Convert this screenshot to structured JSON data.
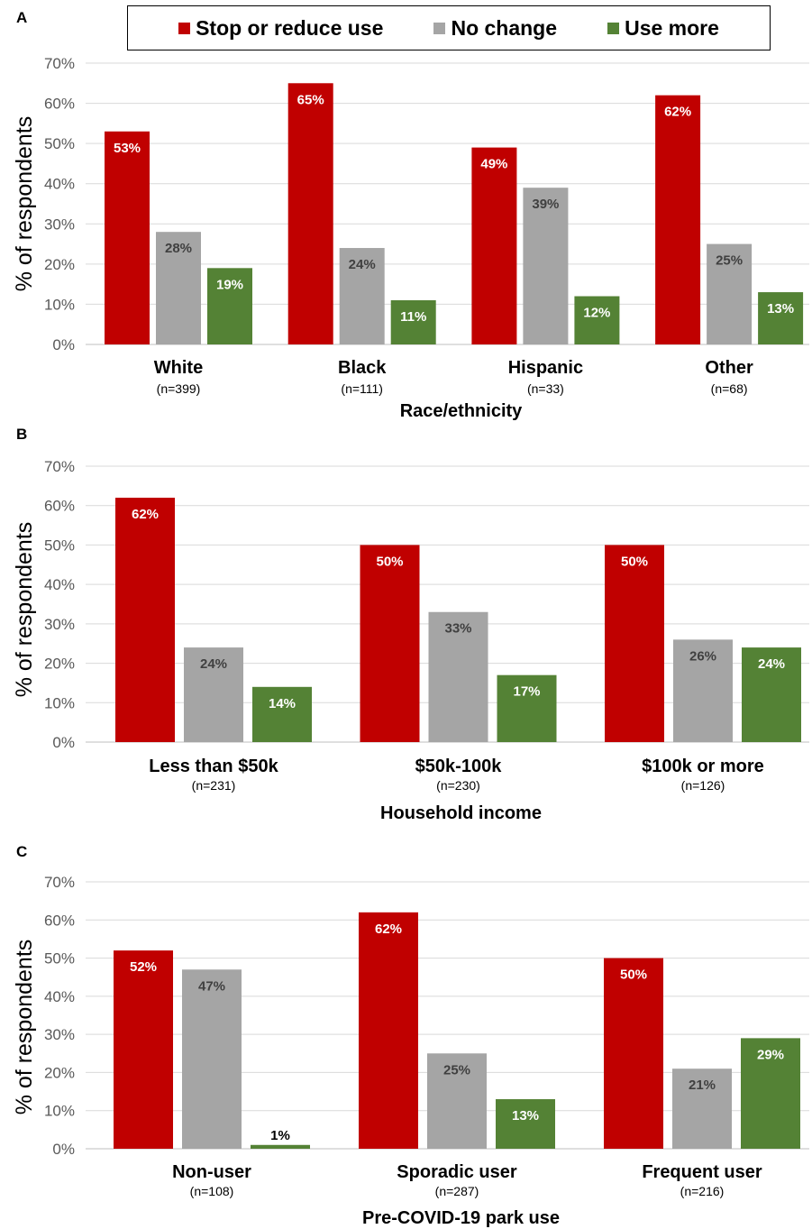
{
  "legend": {
    "items": [
      {
        "label": "Stop or reduce use",
        "color": "#c00000"
      },
      {
        "label": "No change",
        "color": "#a5a5a5"
      },
      {
        "label": "Use more",
        "color": "#548235"
      }
    ]
  },
  "chart_data": [
    {
      "panel_label": "A",
      "type": "bar",
      "ylabel": "% of respondents",
      "xlabel": "Race/ethnicity",
      "ylim": [
        0,
        70
      ],
      "yticks": [
        "0%",
        "10%",
        "20%",
        "30%",
        "40%",
        "50%",
        "60%",
        "70%"
      ],
      "categories": [
        {
          "name": "White",
          "n": "(n=399)"
        },
        {
          "name": "Black",
          "n": "(n=111)"
        },
        {
          "name": "Hispanic",
          "n": "(n=33)"
        },
        {
          "name": "Other",
          "n": "(n=68)"
        }
      ],
      "series": [
        {
          "name": "Stop or reduce use",
          "values": [
            53,
            65,
            49,
            62
          ],
          "labels": [
            "53%",
            "65%",
            "49%",
            "62%"
          ]
        },
        {
          "name": "No change",
          "values": [
            28,
            24,
            39,
            25
          ],
          "labels": [
            "28%",
            "24%",
            "39%",
            "25%"
          ]
        },
        {
          "name": "Use more",
          "values": [
            19,
            11,
            12,
            13
          ],
          "labels": [
            "19%",
            "11%",
            "12%",
            "13%"
          ]
        }
      ]
    },
    {
      "panel_label": "B",
      "type": "bar",
      "ylabel": "% of respondents",
      "xlabel": "Household income",
      "ylim": [
        0,
        70
      ],
      "yticks": [
        "0%",
        "10%",
        "20%",
        "30%",
        "40%",
        "50%",
        "60%",
        "70%"
      ],
      "categories": [
        {
          "name": "Less than $50k",
          "n": "(n=231)"
        },
        {
          "name": "$50k-100k",
          "n": "(n=230)"
        },
        {
          "name": "$100k or more",
          "n": "(n=126)"
        }
      ],
      "series": [
        {
          "name": "Stop or reduce use",
          "values": [
            62,
            50,
            50
          ],
          "labels": [
            "62%",
            "50%",
            "50%"
          ]
        },
        {
          "name": "No change",
          "values": [
            24,
            33,
            26
          ],
          "labels": [
            "24%",
            "33%",
            "26%"
          ]
        },
        {
          "name": "Use more",
          "values": [
            14,
            17,
            24
          ],
          "labels": [
            "14%",
            "17%",
            "24%"
          ]
        }
      ]
    },
    {
      "panel_label": "C",
      "type": "bar",
      "ylabel": "% of respondents",
      "xlabel": "Pre-COVID-19 park use",
      "ylim": [
        0,
        70
      ],
      "yticks": [
        "0%",
        "10%",
        "20%",
        "30%",
        "40%",
        "50%",
        "60%",
        "70%"
      ],
      "categories": [
        {
          "name": "Non-user",
          "n": "(n=108)"
        },
        {
          "name": "Sporadic user",
          "n": "(n=287)"
        },
        {
          "name": "Frequent user",
          "n": "(n=216)"
        }
      ],
      "series": [
        {
          "name": "Stop or reduce use",
          "values": [
            52,
            62,
            50
          ],
          "labels": [
            "52%",
            "62%",
            "50%"
          ]
        },
        {
          "name": "No change",
          "values": [
            47,
            25,
            21
          ],
          "labels": [
            "47%",
            "25%",
            "21%"
          ]
        },
        {
          "name": "Use more",
          "values": [
            1,
            13,
            29
          ],
          "labels": [
            "1%",
            "13%",
            "29%"
          ]
        }
      ]
    }
  ]
}
